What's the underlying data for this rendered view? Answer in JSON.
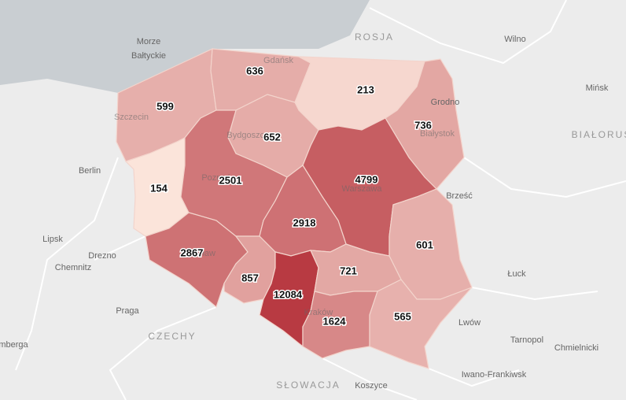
{
  "regions": [
    {
      "value": 599
    },
    {
      "value": 636
    },
    {
      "value": 213
    },
    {
      "value": 736
    },
    {
      "value": 652
    },
    {
      "value": 154
    },
    {
      "value": 2501
    },
    {
      "value": 4799
    },
    {
      "value": 2918
    },
    {
      "value": 601
    },
    {
      "value": 2867
    },
    {
      "value": 857
    },
    {
      "value": 12084
    },
    {
      "value": 721
    },
    {
      "value": 1624
    },
    {
      "value": 565
    }
  ],
  "places": [
    {
      "label": "Morze"
    },
    {
      "label": "Bałtyckie"
    },
    {
      "label": "ROSJA"
    },
    {
      "label": "Wilno"
    },
    {
      "label": "Mińsk"
    },
    {
      "label": "Grodno"
    },
    {
      "label": "BIAŁORUŚ"
    },
    {
      "label": "Brześć"
    },
    {
      "label": "Berlin"
    },
    {
      "label": "Lipsk"
    },
    {
      "label": "Drezno"
    },
    {
      "label": "Chemnitz"
    },
    {
      "label": "Praga"
    },
    {
      "label": "CZECHY"
    },
    {
      "label": "mberga"
    },
    {
      "label": "Łuck"
    },
    {
      "label": "Lwów"
    },
    {
      "label": "Tarnopol"
    },
    {
      "label": "Chmielnicki"
    },
    {
      "label": "Iwano-Frankiwsk"
    },
    {
      "label": "SŁOWACJA"
    },
    {
      "label": "Koszyce"
    },
    {
      "label": "Szczecin"
    },
    {
      "label": "Gdańsk"
    },
    {
      "label": "Bydgoszcz"
    },
    {
      "label": "Białystok"
    },
    {
      "label": "Warszawa"
    },
    {
      "label": "Poznań"
    },
    {
      "label": "Wrocław"
    },
    {
      "label": "Kraków"
    }
  ]
}
